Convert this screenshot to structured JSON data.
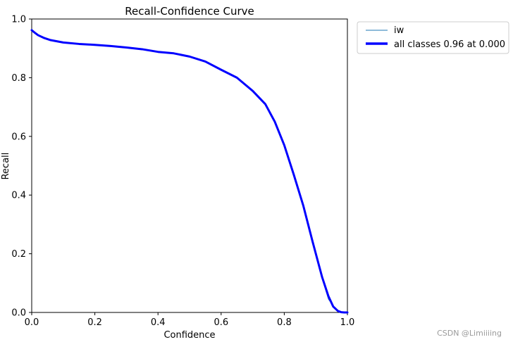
{
  "chart_data": {
    "type": "line",
    "title": "Recall-Confidence Curve",
    "xlabel": "Confidence",
    "ylabel": "Recall",
    "xlim": [
      0.0,
      1.0
    ],
    "ylim": [
      0.0,
      1.0
    ],
    "xticks": [
      "0.0",
      "0.2",
      "0.4",
      "0.6",
      "0.8",
      "1.0"
    ],
    "yticks": [
      "0.0",
      "0.2",
      "0.4",
      "0.6",
      "0.8",
      "1.0"
    ],
    "grid": false,
    "legend_position": "outside-top-right",
    "series": [
      {
        "name": "iw",
        "color": "#1f77b4",
        "x": [
          0.0,
          0.01,
          0.02,
          0.04,
          0.06,
          0.1,
          0.15,
          0.2,
          0.25,
          0.3,
          0.35,
          0.4,
          0.45,
          0.5,
          0.55,
          0.6,
          0.65,
          0.7,
          0.74,
          0.77,
          0.8,
          0.83,
          0.86,
          0.89,
          0.92,
          0.94,
          0.96,
          0.97,
          0.98,
          0.99,
          1.0
        ],
        "y": [
          0.965,
          0.955,
          0.945,
          0.935,
          0.928,
          0.92,
          0.915,
          0.912,
          0.908,
          0.903,
          0.897,
          0.888,
          0.883,
          0.872,
          0.855,
          0.827,
          0.8,
          0.755,
          0.71,
          0.65,
          0.57,
          0.47,
          0.365,
          0.24,
          0.115,
          0.045,
          0.015,
          0.004,
          0.001,
          0.0,
          0.0
        ]
      },
      {
        "name": "all classes 0.96 at 0.000",
        "color": "#0000ff",
        "x": [
          0.0,
          0.01,
          0.02,
          0.04,
          0.06,
          0.1,
          0.15,
          0.2,
          0.25,
          0.3,
          0.35,
          0.4,
          0.45,
          0.5,
          0.55,
          0.6,
          0.65,
          0.7,
          0.74,
          0.77,
          0.8,
          0.83,
          0.86,
          0.89,
          0.92,
          0.94,
          0.955,
          0.97,
          0.98,
          0.99,
          1.0
        ],
        "y": [
          0.962,
          0.953,
          0.945,
          0.935,
          0.928,
          0.92,
          0.915,
          0.912,
          0.908,
          0.903,
          0.897,
          0.888,
          0.883,
          0.872,
          0.855,
          0.827,
          0.8,
          0.755,
          0.71,
          0.65,
          0.57,
          0.47,
          0.365,
          0.24,
          0.12,
          0.055,
          0.02,
          0.005,
          0.001,
          0.0,
          0.0
        ]
      }
    ]
  },
  "watermark": "CSDN @Limiiiing"
}
